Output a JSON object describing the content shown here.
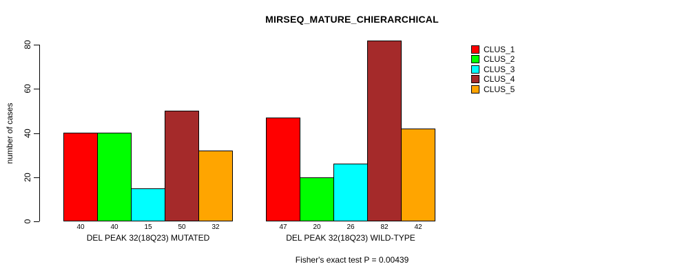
{
  "chart_data": {
    "type": "bar",
    "title": "MIRSEQ_MATURE_CHIERARCHICAL",
    "ylabel": "number of cases",
    "xlabel": "",
    "ylim": [
      0,
      80
    ],
    "yticks": [
      0,
      20,
      40,
      60,
      80
    ],
    "grid": false,
    "legend_position": "top-right",
    "bar_value_labels": true,
    "categories": [
      "DEL PEAK 32(18Q23) MUTATED",
      "DEL PEAK 32(18Q23) WILD-TYPE"
    ],
    "series": [
      {
        "name": "CLUS_1",
        "color": "#FF0000",
        "values": [
          40,
          47
        ]
      },
      {
        "name": "CLUS_2",
        "color": "#00FF00",
        "values": [
          40,
          20
        ]
      },
      {
        "name": "CLUS_3",
        "color": "#00FFFF",
        "values": [
          15,
          26
        ]
      },
      {
        "name": "CLUS_4",
        "color": "#A52A2A",
        "values": [
          50,
          82
        ]
      },
      {
        "name": "CLUS_5",
        "color": "#FFA500",
        "values": [
          32,
          42
        ]
      }
    ],
    "footer": "Fisher's exact test P = 0.00439"
  }
}
